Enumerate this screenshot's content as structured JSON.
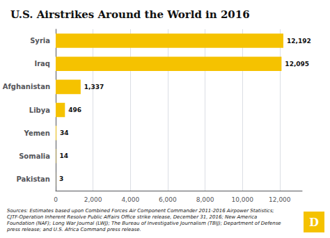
{
  "chart_data": {
    "type": "bar",
    "orientation": "horizontal",
    "title": "U.S. Airstrikes Around the World in 2016",
    "categories": [
      "Syria",
      "Iraq",
      "Afghanistan",
      "Libya",
      "Yemen",
      "Somalia",
      "Pakistan"
    ],
    "values": [
      12192,
      12095,
      1337,
      496,
      34,
      14,
      3
    ],
    "value_labels": [
      "12,192",
      "12,095",
      "1,337",
      "496",
      "34",
      "14",
      "3"
    ],
    "data_labels": true,
    "color": "#F5C200",
    "xlim": [
      0,
      13200
    ],
    "xticks": [
      0,
      {
        "value": 2000,
        "label": "2,000"
      },
      {
        "value": 4000,
        "label": "4,000"
      },
      {
        "value": 6000,
        "label": "6,000"
      },
      {
        "value": 8000,
        "label": "8,000"
      },
      {
        "value": 10000,
        "label": "10,000"
      },
      {
        "value": 12000,
        "label": "12,000"
      }
    ],
    "grid": true,
    "annotations": [
      "Sources: Estimates based upon Combined Forces Air Component Commander 2011-2016 Airpower Statistics; CJTF-Operation Inherent Resolve Public Affairs Office strike release, December 31, 2016; New America Foundation (NAF); Long War Journal (LWJ); The Bureau of Investigative Journalism (TBIJ); Department of Defense press release; and U.S. Africa Command press release.",
      "D"
    ]
  }
}
